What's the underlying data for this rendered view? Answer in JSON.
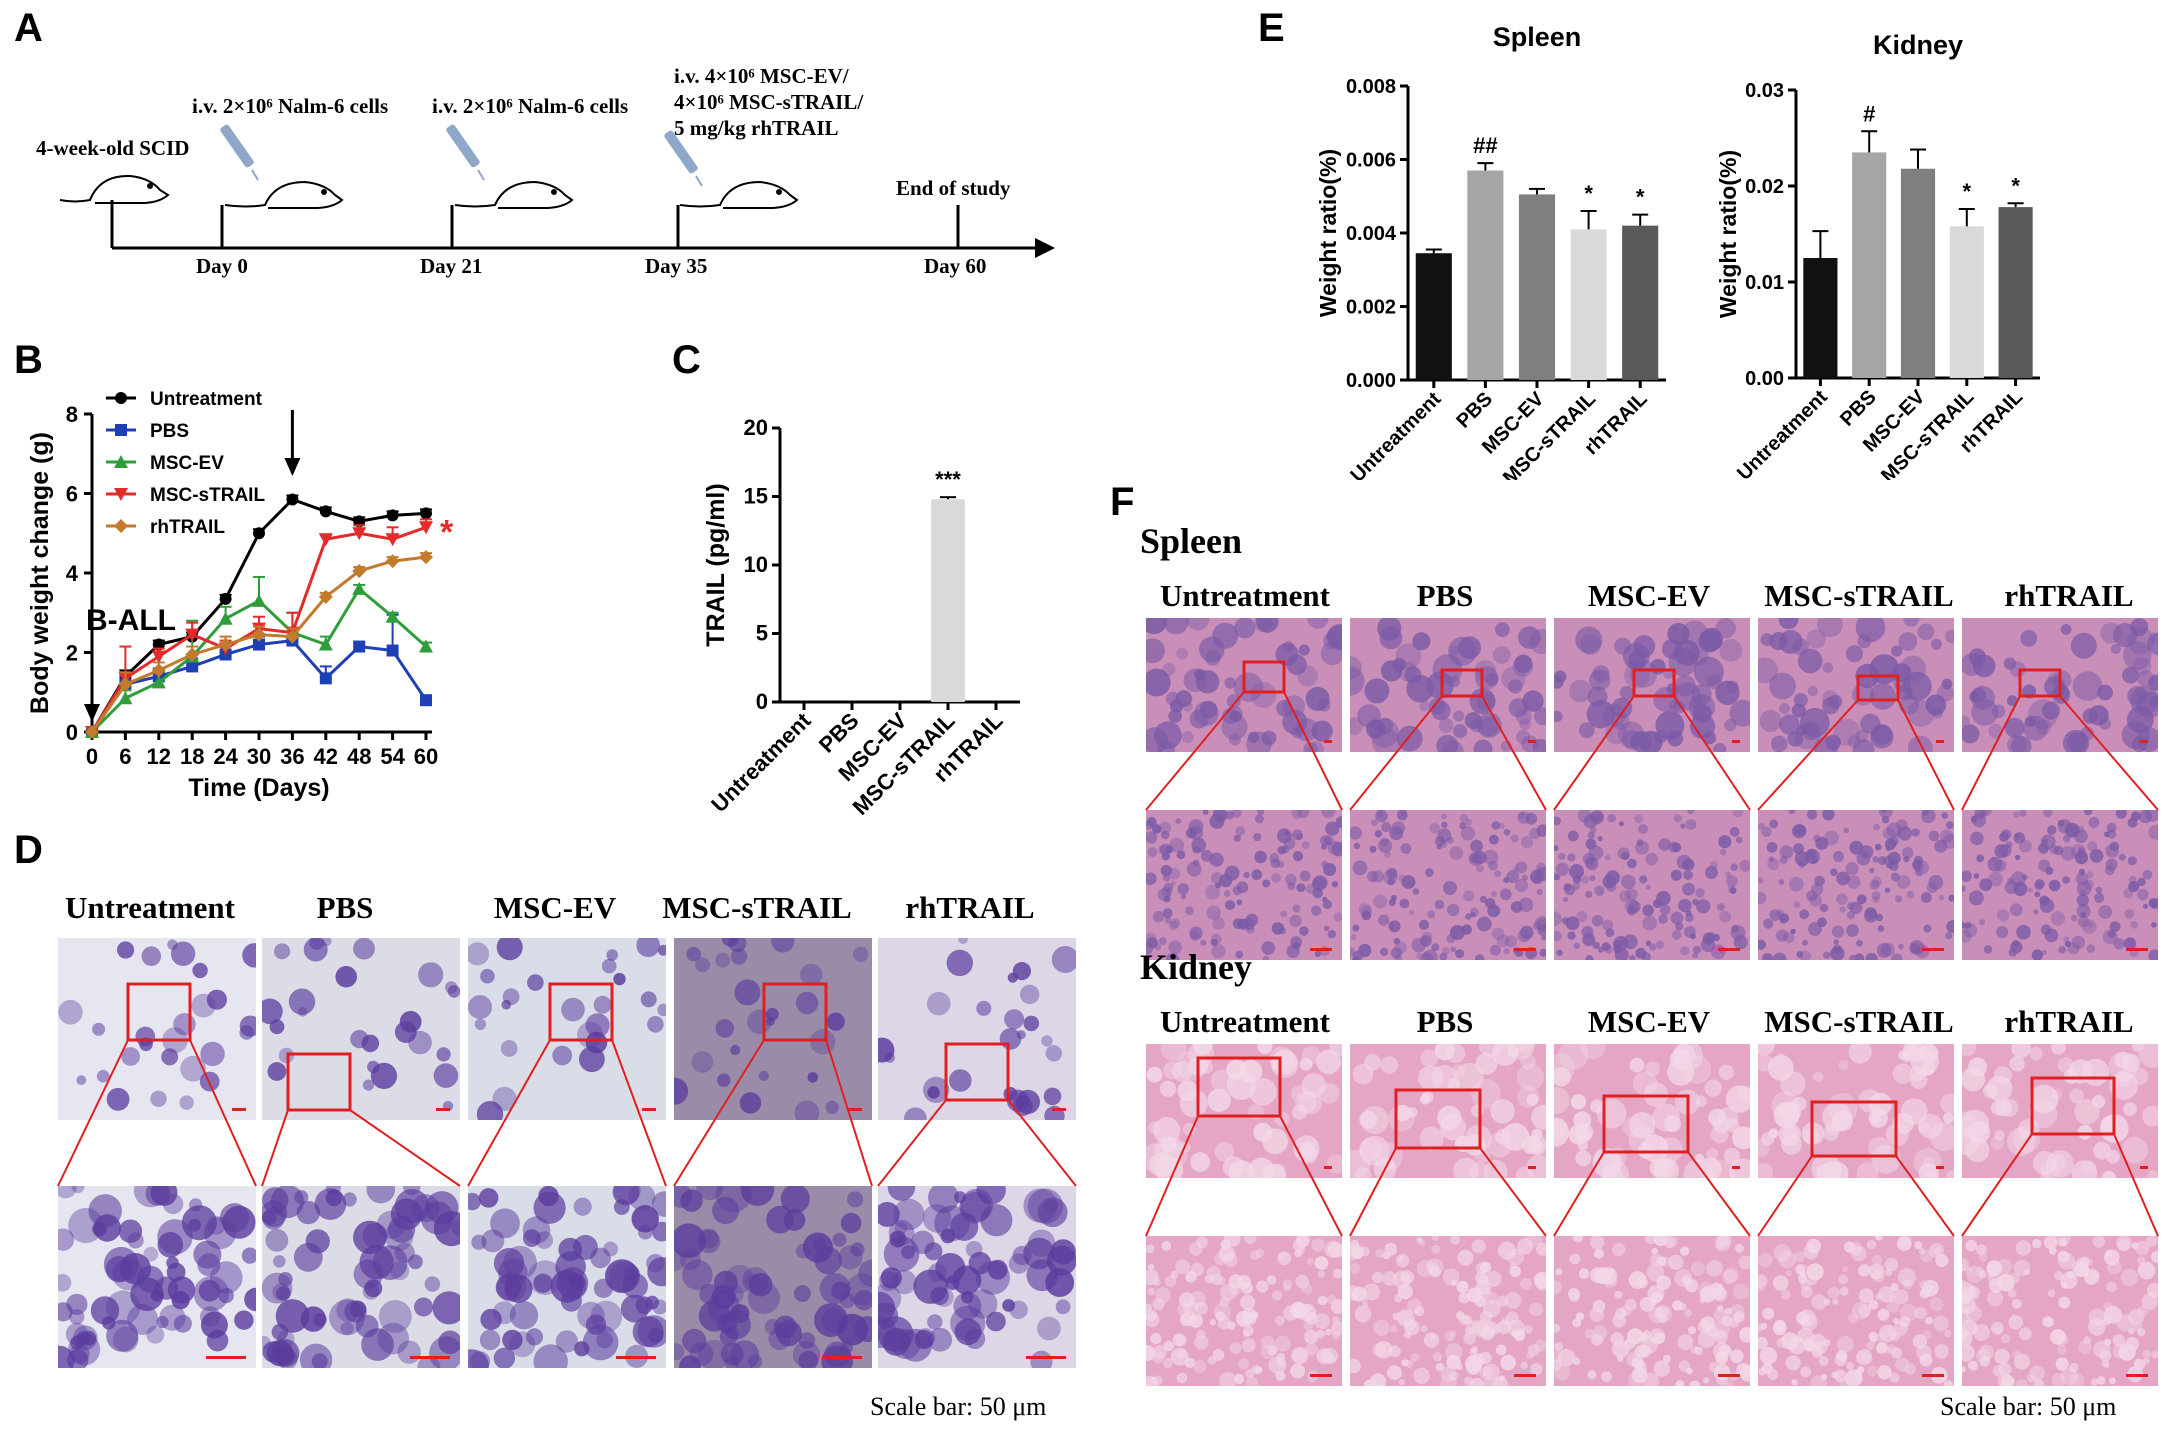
{
  "panels": {
    "A": "A",
    "B": "B",
    "C": "C",
    "D": "D",
    "E": "E",
    "F": "F"
  },
  "timeline": {
    "mouse_label": "4-week-old SCID",
    "injection1": "i.v. 2×10⁶ Nalm-6 cells",
    "injection2": "i.v. 2×10⁶ Nalm-6 cells",
    "treatment_lines": [
      "i.v. 4×10⁶ MSC-EV/",
      "4×10⁶ MSC-sTRAIL/",
      "5 mg/kg rhTRAIL"
    ],
    "end_label": "End of study",
    "days": [
      "Day 0",
      "Day 21",
      "Day 35",
      "Day 60"
    ],
    "colors": {
      "line": "#000000",
      "syringe": "#8fa7c9"
    }
  },
  "chart_data": [
    {
      "panel": "B",
      "type": "line",
      "xlabel": "Time (Days)",
      "ylabel": "Body weight change (g)",
      "x": [
        0,
        6,
        12,
        18,
        24,
        30,
        36,
        42,
        48,
        54,
        60
      ],
      "xticks": [
        "0",
        "6",
        "12",
        "18",
        "24",
        "30",
        "36",
        "42",
        "48",
        "54",
        "60"
      ],
      "yticks": [
        "0",
        "2",
        "4",
        "6",
        "8"
      ],
      "xlim": [
        0,
        60
      ],
      "ylim": [
        0,
        8
      ],
      "annotation": "B-ALL",
      "significance": "*",
      "series": [
        {
          "name": "Untreatment",
          "color": "#000000",
          "marker": "circle",
          "values": [
            0,
            1.4,
            2.2,
            2.4,
            3.35,
            5.0,
            5.85,
            5.55,
            5.3,
            5.45,
            5.5
          ],
          "err": [
            0,
            0.15,
            0.1,
            0.1,
            0.1,
            0.1,
            0.1,
            0.1,
            0.1,
            0.1,
            0.1
          ]
        },
        {
          "name": "PBS",
          "color": "#1f3fb5",
          "marker": "square",
          "values": [
            0,
            1.2,
            1.4,
            1.65,
            1.95,
            2.2,
            2.3,
            1.35,
            2.15,
            2.05,
            0.8
          ],
          "err": [
            0,
            0.2,
            0.2,
            0.2,
            0.2,
            0.2,
            0.2,
            0.3,
            0.1,
            0.9,
            0.1
          ]
        },
        {
          "name": "MSC-EV",
          "color": "#2f9e3a",
          "marker": "triangle",
          "values": [
            0,
            0.85,
            1.25,
            1.9,
            2.85,
            3.3,
            2.5,
            2.2,
            3.6,
            2.9,
            2.15
          ],
          "err": [
            0,
            0.2,
            0.3,
            0.9,
            0.3,
            0.6,
            0.5,
            0.2,
            0.1,
            0.1,
            0.1
          ]
        },
        {
          "name": "MSC-sTRAIL",
          "color": "#e32b2b",
          "marker": "triangle-down",
          "values": [
            0,
            1.35,
            1.9,
            2.45,
            2.1,
            2.6,
            2.5,
            4.85,
            5.0,
            4.85,
            5.15
          ],
          "err": [
            0,
            0.8,
            0.2,
            0.3,
            0.2,
            0.3,
            0.5,
            0.1,
            0.2,
            0.3,
            0.2
          ]
        },
        {
          "name": "rhTRAIL",
          "color": "#c27a2c",
          "marker": "diamond",
          "values": [
            0,
            1.2,
            1.55,
            1.95,
            2.2,
            2.45,
            2.4,
            3.4,
            4.05,
            4.3,
            4.4
          ],
          "err": [
            0,
            0.3,
            0.2,
            0.2,
            0.2,
            0.2,
            0.2,
            0.1,
            0.1,
            0.1,
            0.1
          ]
        }
      ]
    },
    {
      "panel": "C",
      "type": "bar",
      "ylabel": "TRAIL (pg/ml)",
      "categories": [
        "Untreatment",
        "PBS",
        "MSC-EV",
        "MSC-sTRAIL",
        "rhTRAIL"
      ],
      "values": [
        0,
        0,
        0,
        14.8,
        0
      ],
      "err": [
        0,
        0,
        0,
        0.15,
        0
      ],
      "yticks": [
        "0",
        "5",
        "10",
        "15",
        "20"
      ],
      "ylim": [
        0,
        20
      ],
      "significance": [
        "",
        "",
        "",
        "***",
        ""
      ],
      "colors": [
        "#d9d9d9",
        "#d9d9d9",
        "#d9d9d9",
        "#d9d9d9",
        "#d9d9d9"
      ]
    },
    {
      "panel": "E",
      "type": "bar",
      "title": "Spleen",
      "ylabel": "Weight ratio(%)",
      "categories": [
        "Untreatment",
        "PBS",
        "MSC-EV",
        "MSC-sTRAIL",
        "rhTRAIL"
      ],
      "values": [
        0.00345,
        0.0057,
        0.00505,
        0.0041,
        0.0042
      ],
      "err": [
        0.0001,
        0.0002,
        0.00015,
        0.0005,
        0.0003
      ],
      "yticks": [
        "0.000",
        "0.002",
        "0.004",
        "0.006",
        "0.008"
      ],
      "ylim": [
        0,
        0.008
      ],
      "significance": [
        "",
        "##",
        "",
        "*",
        "*"
      ],
      "colors": [
        "#111111",
        "#a6a6a6",
        "#7f7f7f",
        "#d9d9d9",
        "#595959"
      ]
    },
    {
      "panel": "E",
      "type": "bar",
      "title": "Kidney",
      "ylabel": "Weight ratio(%)",
      "categories": [
        "Untreatment",
        "PBS",
        "MSC-EV",
        "MSC-sTRAIL",
        "rhTRAIL"
      ],
      "values": [
        0.0125,
        0.0235,
        0.0218,
        0.0158,
        0.0178
      ],
      "err": [
        0.0028,
        0.0022,
        0.002,
        0.0018,
        0.0004
      ],
      "yticks": [
        "0.00",
        "0.01",
        "0.02",
        "0.03"
      ],
      "ylim": [
        0,
        0.03
      ],
      "significance": [
        "",
        "#",
        "",
        "*",
        "*"
      ],
      "colors": [
        "#111111",
        "#a6a6a6",
        "#7f7f7f",
        "#d9d9d9",
        "#595959"
      ]
    }
  ],
  "panel_d": {
    "groups": [
      "Untreatment",
      "PBS",
      "MSC-EV",
      "MSC-sTRAIL",
      "rhTRAIL"
    ],
    "scale_bar": "Scale bar: 50 μm",
    "bg_colors": [
      "#e6e6f1",
      "#dcdce6",
      "#d9dde8",
      "#9a8ca8",
      "#dcd6e6"
    ],
    "cell_color": "#5b3c9e"
  },
  "panel_f": {
    "spleen_label": "Spleen",
    "kidney_label": "Kidney",
    "groups": [
      "Untreatment",
      "PBS",
      "MSC-EV",
      "MSC-sTRAIL",
      "rhTRAIL"
    ],
    "scale_bar": "Scale bar: 50 μm",
    "spleen_colors": {
      "base": "#c98fb8",
      "dark": "#7a5aa6"
    },
    "kidney_colors": {
      "base": "#e4a6c4",
      "light": "#f3d8e8"
    },
    "highlight_color": "#e02020"
  }
}
